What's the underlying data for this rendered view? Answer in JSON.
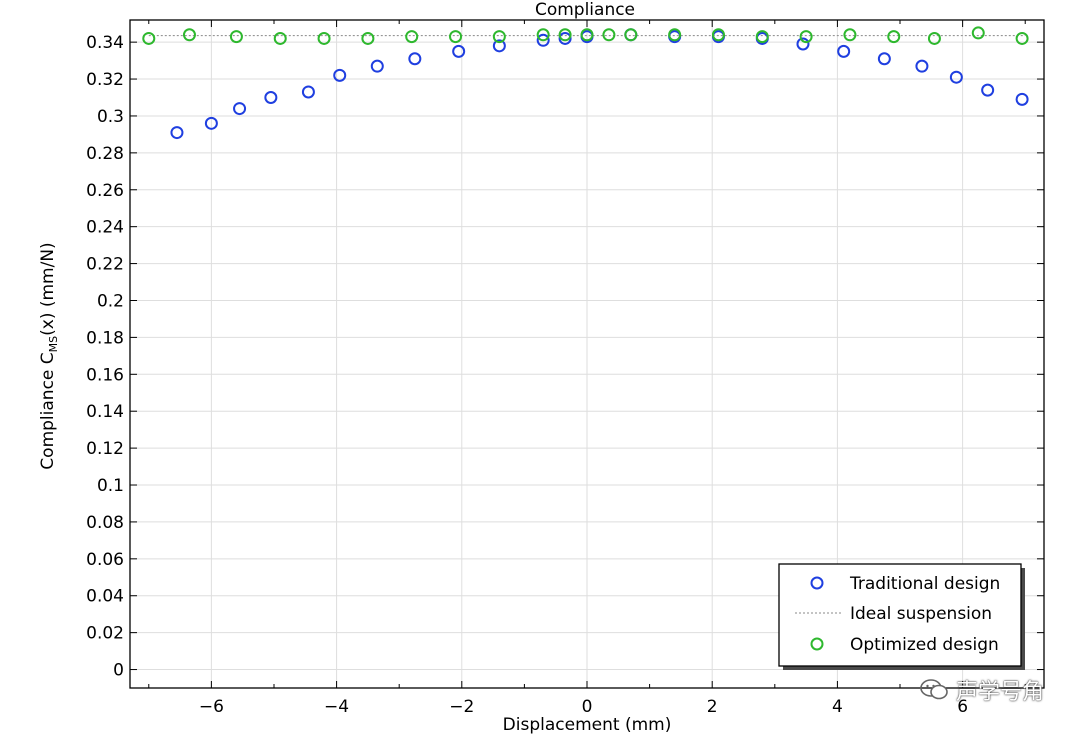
{
  "chart_data": {
    "type": "scatter",
    "title": "Compliance",
    "xlabel": "Displacement (mm)",
    "ylabel_main": "Compliance C",
    "ylabel_sub": "MS",
    "ylabel_tail": "(x) (mm/N)",
    "xlim": [
      -7.3,
      7.3
    ],
    "ylim": [
      -0.01,
      0.352
    ],
    "x_ticks": [
      -6,
      -4,
      -2,
      0,
      2,
      4,
      6
    ],
    "x_tick_labels": [
      "−6",
      "−4",
      "−2",
      "0",
      "2",
      "4",
      "6"
    ],
    "y_ticks": [
      0,
      0.02,
      0.04,
      0.06,
      0.08,
      0.1,
      0.12,
      0.14,
      0.16,
      0.18,
      0.2,
      0.22,
      0.24,
      0.26,
      0.28,
      0.3,
      0.32,
      0.34
    ],
    "y_tick_labels": [
      "0",
      "0.02",
      "0.04",
      "0.06",
      "0.08",
      "0.1",
      "0.12",
      "0.14",
      "0.16",
      "0.18",
      "0.2",
      "0.22",
      "0.24",
      "0.26",
      "0.28",
      "0.3",
      "0.32",
      "0.34"
    ],
    "grid": true,
    "legend_position": "bottom-right",
    "colors": {
      "traditional": "#1f3fe0",
      "optimized": "#2eb82e",
      "ideal": "#888888"
    },
    "series": [
      {
        "name": "Traditional design",
        "marker": "circle",
        "x": [
          -6.55,
          -6.0,
          -5.55,
          -5.05,
          -4.45,
          -3.95,
          -3.35,
          -2.75,
          -2.05,
          -1.4,
          -0.7,
          -0.35,
          0.0,
          0.7,
          1.4,
          2.1,
          2.8,
          3.45,
          4.1,
          4.75,
          5.35,
          5.9,
          6.4,
          6.95
        ],
        "y": [
          0.291,
          0.296,
          0.304,
          0.31,
          0.313,
          0.322,
          0.327,
          0.331,
          0.335,
          0.338,
          0.341,
          0.342,
          0.343,
          0.344,
          0.343,
          0.343,
          0.342,
          0.339,
          0.335,
          0.331,
          0.327,
          0.321,
          0.314,
          0.309
        ]
      },
      {
        "name": "Ideal suspension",
        "marker": "dotted-line",
        "x": [
          -7.0,
          7.0
        ],
        "y": [
          0.3435,
          0.3435
        ]
      },
      {
        "name": "Optimized design",
        "marker": "circle",
        "x": [
          -7.0,
          -6.35,
          -5.6,
          -4.9,
          -4.2,
          -3.5,
          -2.8,
          -2.1,
          -1.4,
          -0.7,
          -0.35,
          0.0,
          0.35,
          0.7,
          1.4,
          2.1,
          2.8,
          3.5,
          4.2,
          4.9,
          5.55,
          6.25,
          6.95
        ],
        "y": [
          0.342,
          0.344,
          0.343,
          0.342,
          0.342,
          0.342,
          0.343,
          0.343,
          0.343,
          0.344,
          0.344,
          0.344,
          0.344,
          0.344,
          0.344,
          0.344,
          0.343,
          0.343,
          0.344,
          0.343,
          0.342,
          0.345,
          0.342
        ]
      }
    ]
  },
  "watermark": {
    "text": "声学号角",
    "icon": "wechat-icon"
  }
}
